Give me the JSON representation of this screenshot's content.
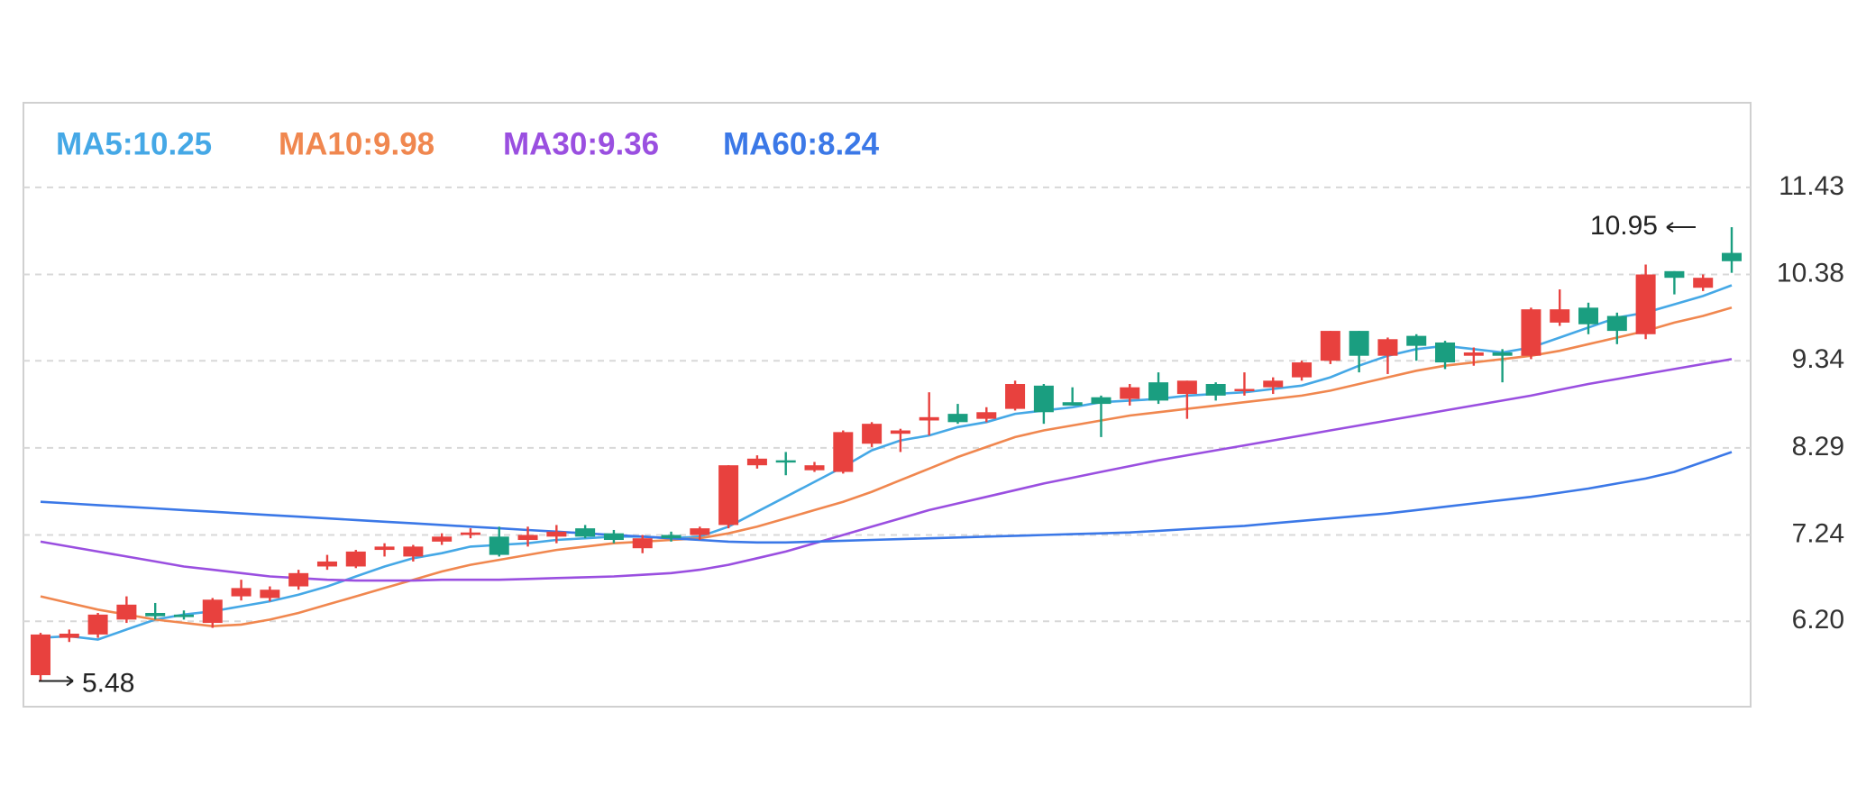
{
  "chart_data": {
    "type": "candlestick",
    "ylim": [
      5.17,
      12.45
    ],
    "yticks": [
      {
        "value": 6.2,
        "label": "6.20"
      },
      7.24,
      8.29,
      9.34,
      10.38,
      11.43
    ],
    "grid": true,
    "up_color": "#e8413e",
    "down_color": "#1a9e80",
    "candles": {
      "open": [
        5.55,
        6.0,
        6.04,
        6.22,
        6.3,
        6.28,
        6.18,
        6.5,
        6.48,
        6.62,
        6.86,
        6.86,
        7.06,
        6.98,
        7.16,
        7.24,
        7.22,
        7.18,
        7.22,
        7.32,
        7.26,
        7.08,
        7.24,
        7.24,
        7.36,
        8.08,
        8.14,
        8.02,
        8.0,
        8.34,
        8.46,
        8.62,
        8.7,
        8.64,
        8.76,
        9.04,
        8.84,
        8.9,
        8.88,
        9.08,
        8.94,
        9.06,
        8.98,
        9.02,
        9.14,
        9.34,
        9.7,
        9.4,
        9.64,
        9.56,
        9.4,
        9.44,
        9.4,
        9.8,
        9.98,
        9.88,
        9.66,
        10.42,
        10.22,
        10.64
      ],
      "high": [
        6.06,
        6.1,
        6.3,
        6.5,
        6.42,
        6.33,
        6.48,
        6.7,
        6.62,
        6.82,
        7.0,
        7.06,
        7.14,
        7.12,
        7.26,
        7.32,
        7.34,
        7.34,
        7.36,
        7.36,
        7.3,
        7.24,
        7.28,
        7.34,
        8.08,
        8.2,
        8.24,
        8.12,
        8.5,
        8.6,
        8.52,
        8.96,
        8.82,
        8.78,
        9.1,
        9.06,
        9.02,
        8.92,
        9.06,
        9.2,
        9.1,
        9.08,
        9.2,
        9.14,
        9.34,
        9.7,
        9.7,
        9.62,
        9.66,
        9.58,
        9.5,
        9.48,
        9.98,
        10.2,
        10.04,
        9.92,
        10.5,
        10.42,
        10.38,
        10.95
      ],
      "low": [
        5.48,
        5.95,
        6.0,
        6.18,
        6.22,
        6.22,
        6.12,
        6.45,
        6.44,
        6.58,
        6.82,
        6.84,
        6.98,
        6.92,
        7.12,
        7.2,
        6.98,
        7.1,
        7.14,
        7.2,
        7.14,
        7.02,
        7.16,
        7.18,
        7.32,
        8.04,
        7.96,
        8.0,
        7.98,
        8.3,
        8.24,
        8.44,
        8.58,
        8.6,
        8.74,
        8.58,
        8.8,
        8.42,
        8.8,
        8.82,
        8.64,
        8.86,
        8.92,
        8.94,
        9.1,
        9.3,
        9.2,
        9.18,
        9.34,
        9.24,
        9.28,
        9.08,
        9.36,
        9.76,
        9.66,
        9.54,
        9.6,
        10.14,
        10.18,
        10.4
      ],
      "close": [
        6.04,
        6.05,
        6.28,
        6.4,
        6.26,
        6.25,
        6.46,
        6.6,
        6.58,
        6.78,
        6.92,
        7.04,
        7.1,
        7.1,
        7.22,
        7.27,
        7.0,
        7.24,
        7.28,
        7.22,
        7.18,
        7.2,
        7.2,
        7.32,
        8.08,
        8.16,
        8.12,
        8.08,
        8.48,
        8.58,
        8.5,
        8.66,
        8.6,
        8.72,
        9.06,
        8.72,
        8.8,
        8.82,
        9.02,
        8.86,
        9.1,
        8.92,
        9.0,
        9.1,
        9.32,
        9.7,
        9.4,
        9.6,
        9.52,
        9.32,
        9.44,
        9.4,
        9.96,
        9.96,
        9.78,
        9.7,
        10.38,
        10.34,
        10.34,
        10.54
      ]
    },
    "series": [
      {
        "name": "MA5:10.25",
        "color": "#45a8e6",
        "values": [
          6.0,
          6.02,
          5.98,
          6.1,
          6.22,
          6.28,
          6.32,
          6.38,
          6.44,
          6.52,
          6.62,
          6.74,
          6.86,
          6.96,
          7.02,
          7.1,
          7.12,
          7.14,
          7.18,
          7.2,
          7.22,
          7.22,
          7.2,
          7.22,
          7.34,
          7.52,
          7.7,
          7.88,
          8.06,
          8.26,
          8.38,
          8.44,
          8.54,
          8.6,
          8.7,
          8.74,
          8.78,
          8.84,
          8.86,
          8.88,
          8.92,
          8.94,
          8.96,
          9.0,
          9.04,
          9.14,
          9.28,
          9.4,
          9.48,
          9.52,
          9.48,
          9.44,
          9.5,
          9.62,
          9.74,
          9.86,
          9.92,
          10.02,
          10.12,
          10.25
        ]
      },
      {
        "name": "MA10:9.98",
        "color": "#f0874f",
        "values": [
          6.5,
          6.42,
          6.34,
          6.28,
          6.22,
          6.18,
          6.14,
          6.16,
          6.22,
          6.3,
          6.4,
          6.5,
          6.6,
          6.7,
          6.8,
          6.88,
          6.94,
          7.0,
          7.06,
          7.1,
          7.14,
          7.16,
          7.18,
          7.2,
          7.26,
          7.34,
          7.44,
          7.54,
          7.64,
          7.76,
          7.9,
          8.04,
          8.18,
          8.3,
          8.42,
          8.5,
          8.56,
          8.62,
          8.68,
          8.72,
          8.76,
          8.8,
          8.84,
          8.88,
          8.92,
          8.98,
          9.06,
          9.14,
          9.22,
          9.28,
          9.32,
          9.36,
          9.4,
          9.46,
          9.54,
          9.62,
          9.7,
          9.8,
          9.88,
          9.98
        ]
      },
      {
        "name": "MA30:9.36",
        "color": "#9a4fe0",
        "values": [
          7.16,
          7.1,
          7.04,
          6.98,
          6.92,
          6.86,
          6.82,
          6.78,
          6.74,
          6.72,
          6.7,
          6.69,
          6.69,
          6.69,
          6.7,
          6.7,
          6.7,
          6.71,
          6.72,
          6.73,
          6.74,
          6.76,
          6.78,
          6.82,
          6.88,
          6.96,
          7.04,
          7.14,
          7.24,
          7.34,
          7.44,
          7.54,
          7.62,
          7.7,
          7.78,
          7.86,
          7.93,
          8.0,
          8.07,
          8.14,
          8.2,
          8.26,
          8.32,
          8.38,
          8.44,
          8.5,
          8.56,
          8.62,
          8.68,
          8.74,
          8.8,
          8.86,
          8.92,
          8.99,
          9.06,
          9.12,
          9.18,
          9.24,
          9.3,
          9.36
        ]
      },
      {
        "name": "MA60:8.24",
        "color": "#3b78e7",
        "values": [
          7.64,
          7.62,
          7.6,
          7.58,
          7.56,
          7.54,
          7.52,
          7.5,
          7.48,
          7.46,
          7.44,
          7.42,
          7.4,
          7.38,
          7.36,
          7.34,
          7.32,
          7.3,
          7.28,
          7.26,
          7.24,
          7.22,
          7.2,
          7.18,
          7.16,
          7.15,
          7.15,
          7.16,
          7.17,
          7.18,
          7.19,
          7.2,
          7.21,
          7.22,
          7.23,
          7.24,
          7.25,
          7.26,
          7.27,
          7.29,
          7.31,
          7.33,
          7.35,
          7.38,
          7.41,
          7.44,
          7.47,
          7.5,
          7.54,
          7.58,
          7.62,
          7.66,
          7.7,
          7.75,
          7.8,
          7.86,
          7.92,
          8.0,
          8.12,
          8.24
        ]
      }
    ]
  }
}
